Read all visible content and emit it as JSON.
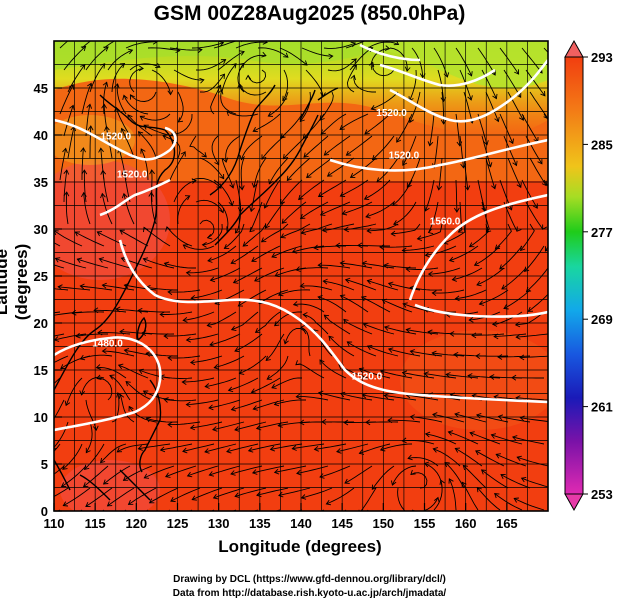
{
  "title": "GSM 00Z28Aug2025 (850.0hPa)",
  "x_axis": {
    "label": "Longitude (degrees)",
    "range": [
      110,
      170
    ],
    "ticks": [
      "110",
      "115",
      "120",
      "125",
      "130",
      "135",
      "140",
      "145",
      "150",
      "155",
      "160",
      "165"
    ]
  },
  "y_axis": {
    "label": "Latitude  (degrees)",
    "range": [
      0,
      50
    ],
    "ticks": [
      "0",
      "5",
      "10",
      "15",
      "20",
      "25",
      "30",
      "35",
      "40",
      "45"
    ]
  },
  "colorbar": {
    "labels": [
      "293",
      "285",
      "277",
      "269",
      "261",
      "253"
    ],
    "range": [
      253,
      293
    ]
  },
  "contour_labels": [
    {
      "text": "1520.0",
      "lon": 117.5,
      "lat": 39.5
    },
    {
      "text": "1520.0",
      "lon": 119.5,
      "lat": 35.5
    },
    {
      "text": "1520.0",
      "lon": 152.5,
      "lat": 37.5
    },
    {
      "text": "1520.0",
      "lon": 151.0,
      "lat": 42.0
    },
    {
      "text": "1560.0",
      "lon": 157.5,
      "lat": 30.5
    },
    {
      "text": "1480.0",
      "lon": 116.5,
      "lat": 17.5
    },
    {
      "text": "1520.0",
      "lon": 148.0,
      "lat": 14.0
    }
  ],
  "credits": {
    "line1": "Drawing by DCL (https://www.gfd-dennou.org/library/dcl/)",
    "line2": "Data from http://database.rish.kyoto-u.ac.jp/arch/jmadata/"
  }
}
